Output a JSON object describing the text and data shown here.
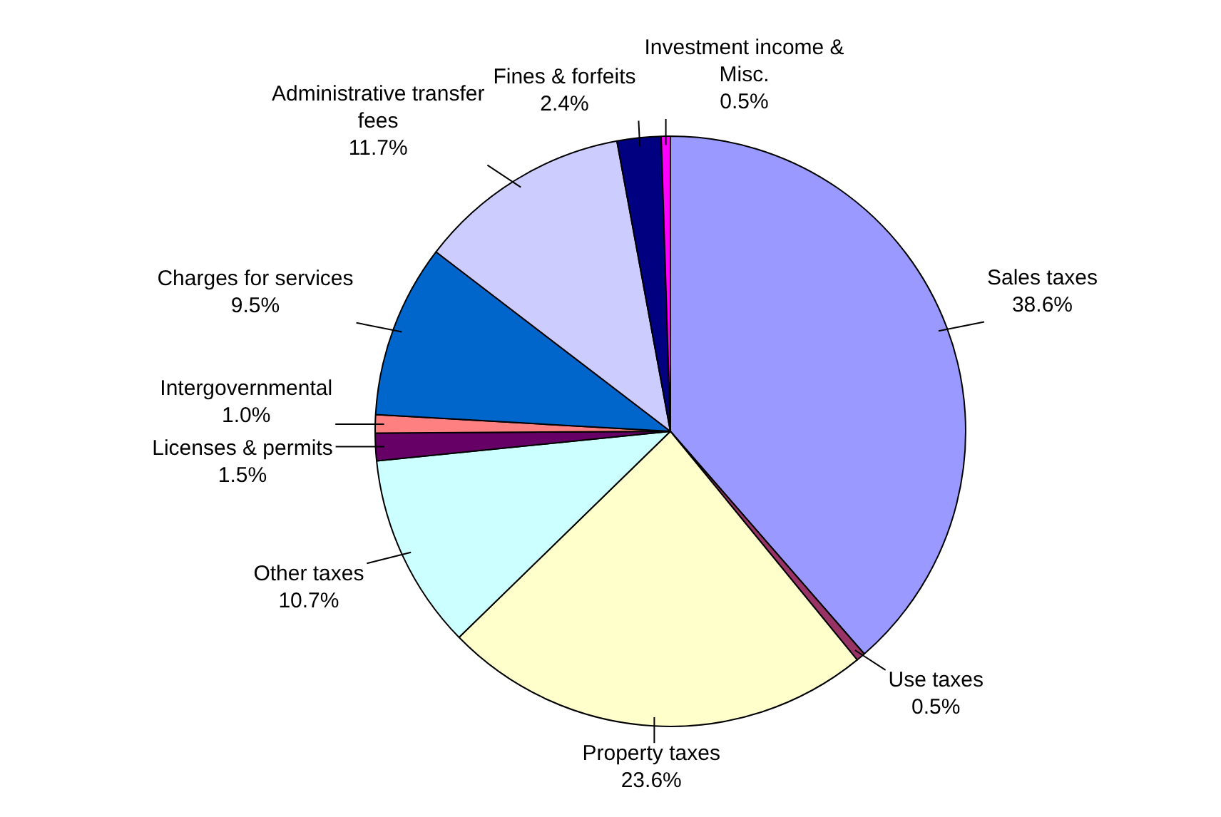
{
  "chart_data": {
    "type": "pie",
    "categories": [
      "Sales taxes",
      "Use taxes",
      "Property taxes",
      "Other taxes",
      "Licenses & permits",
      "Intergovernmental",
      "Charges for services",
      "Administrative transfer fees",
      "Fines & forfeits",
      "Investment income & Misc."
    ],
    "values": [
      38.6,
      0.5,
      23.6,
      10.7,
      1.5,
      1.0,
      9.5,
      11.7,
      2.4,
      0.5
    ],
    "value_labels": [
      "38.6%",
      "0.5%",
      "23.6%",
      "10.7%",
      "1.5%",
      "1.0%",
      "9.5%",
      "11.7%",
      "2.4%",
      "0.5%"
    ],
    "colors": [
      "#9999ff",
      "#993366",
      "#ffffcc",
      "#ccffff",
      "#660066",
      "#ff8080",
      "#0066cc",
      "#ccccff",
      "#000080",
      "#ff00ff"
    ],
    "legend": false
  }
}
